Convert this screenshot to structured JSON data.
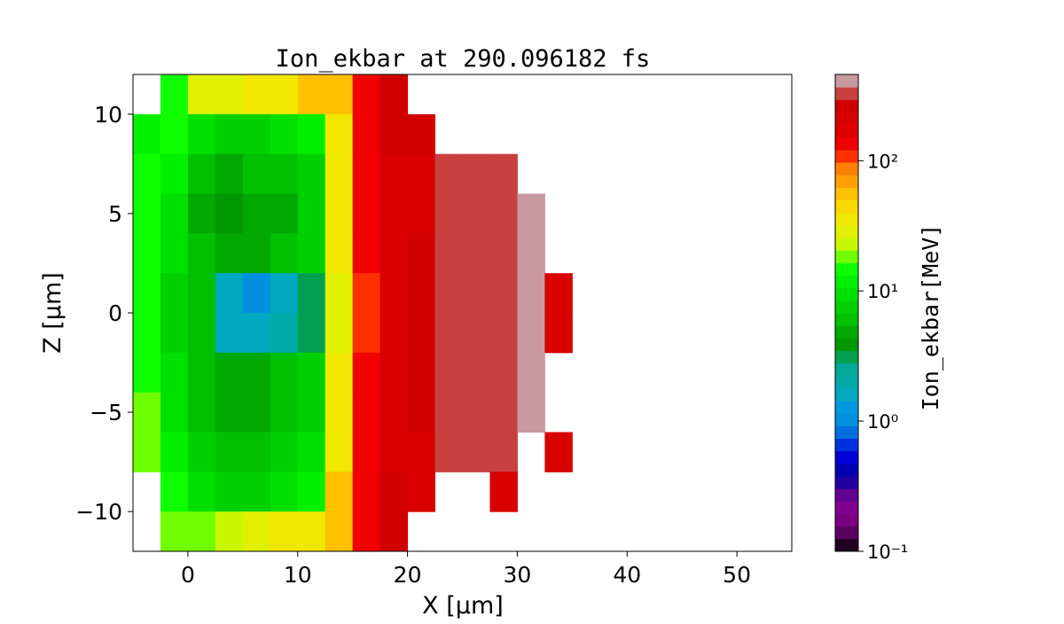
{
  "chart_data": {
    "type": "heatmap",
    "title": "Ion_ekbar at 290.096182 fs",
    "xlabel": "X  [μm]",
    "ylabel": "Z  [μm]",
    "colorbar_label": "Ion_ekbar[MeV]",
    "xlim": [
      -5,
      55
    ],
    "ylim": [
      -12,
      12
    ],
    "x_ticks": [
      0,
      10,
      20,
      30,
      40,
      50
    ],
    "x_tick_labels": [
      "0",
      "10",
      "20",
      "30",
      "40",
      "50"
    ],
    "y_ticks": [
      10,
      5,
      0,
      -5,
      -10
    ],
    "y_tick_labels": [
      "10",
      "5",
      "0",
      "−5",
      "−10"
    ],
    "colorbar_scale": "log",
    "colorbar_range": [
      0.1,
      460
    ],
    "colorbar_ticks": [
      100,
      10,
      1,
      0.1
    ],
    "colorbar_tick_labels": [
      "10²",
      "10¹",
      "10⁰",
      "10⁻¹"
    ],
    "colormap": [
      "#200020",
      "#580060",
      "#780080",
      "#800090",
      "#600090",
      "#2000a0",
      "#0000b0",
      "#0000d8",
      "#0030e0",
      "#0070e0",
      "#0090e0",
      "#0098e0",
      "#00a8c0",
      "#00a8a8",
      "#00a898",
      "#00a050",
      "#009800",
      "#00a800",
      "#00c000",
      "#00d000",
      "#00e000",
      "#00f000",
      "#10ff00",
      "#70ff00",
      "#c8f800",
      "#e0f000",
      "#f0e800",
      "#f8d800",
      "#ffc000",
      "#ffa000",
      "#ff8000",
      "#ff3000",
      "#f00000",
      "#e00000",
      "#d80000",
      "#d00000",
      "#c84040",
      "#c89aa0"
    ],
    "grid_x_centers": [
      -3.75,
      -1.25,
      1.25,
      3.75,
      6.25,
      8.75,
      11.25,
      13.75,
      16.25,
      18.75,
      21.25,
      23.75,
      26.25,
      28.75,
      31.25,
      33.75,
      36.25,
      38.75,
      41.25,
      43.75,
      46.25,
      48.75,
      51.25,
      53.75
    ],
    "grid_z_centers": [
      11,
      9,
      7,
      5,
      3,
      1,
      -1,
      -3,
      -5,
      -7,
      -9,
      -11
    ],
    "values_MeV": [
      [
        null,
        15,
        30,
        30,
        35,
        40,
        50,
        60,
        150,
        250,
        null,
        null,
        null,
        null,
        null,
        null,
        null,
        null,
        null,
        null,
        null,
        null,
        null,
        null
      ],
      [
        12,
        15,
        10,
        8,
        8,
        9,
        12,
        40,
        150,
        250,
        250,
        null,
        null,
        null,
        null,
        null,
        null,
        null,
        null,
        null,
        null,
        null,
        null,
        null
      ],
      [
        15,
        12,
        6,
        5,
        6,
        6,
        8,
        40,
        150,
        200,
        200,
        300,
        300,
        300,
        null,
        null,
        null,
        null,
        null,
        null,
        null,
        null,
        null,
        null
      ],
      [
        15,
        10,
        5,
        4,
        5,
        5,
        7,
        40,
        150,
        200,
        200,
        300,
        300,
        300,
        400,
        null,
        null,
        null,
        null,
        null,
        null,
        null,
        null,
        null
      ],
      [
        15,
        10,
        6,
        5,
        5,
        6,
        8,
        40,
        150,
        200,
        250,
        300,
        300,
        300,
        400,
        null,
        null,
        null,
        null,
        null,
        null,
        null,
        null,
        null
      ],
      [
        15,
        8,
        6,
        1.5,
        1,
        1.5,
        3,
        30,
        120,
        200,
        250,
        300,
        300,
        300,
        450,
        200,
        null,
        null,
        null,
        null,
        null,
        null,
        null,
        null
      ],
      [
        15,
        8,
        6,
        1.5,
        1.5,
        2,
        3,
        30,
        120,
        200,
        250,
        300,
        300,
        300,
        450,
        200,
        null,
        null,
        null,
        null,
        null,
        null,
        null,
        null
      ],
      [
        15,
        10,
        6,
        5,
        5,
        6,
        8,
        40,
        150,
        200,
        250,
        300,
        300,
        300,
        400,
        null,
        null,
        null,
        null,
        null,
        null,
        null,
        null,
        null
      ],
      [
        20,
        10,
        6,
        5,
        5,
        6,
        8,
        40,
        150,
        200,
        250,
        300,
        300,
        300,
        400,
        null,
        null,
        null,
        null,
        null,
        null,
        null,
        null,
        null
      ],
      [
        20,
        12,
        8,
        6,
        6,
        7,
        9,
        40,
        150,
        200,
        200,
        300,
        300,
        300,
        null,
        200,
        null,
        null,
        null,
        null,
        null,
        null,
        null,
        null
      ],
      [
        null,
        15,
        10,
        8,
        8,
        10,
        12,
        50,
        150,
        250,
        200,
        null,
        null,
        200,
        null,
        null,
        null,
        null,
        null,
        null,
        null,
        null,
        null,
        null
      ],
      [
        null,
        20,
        20,
        25,
        30,
        35,
        40,
        60,
        150,
        250,
        null,
        null,
        null,
        null,
        null,
        null,
        null,
        null,
        null,
        null,
        null,
        null,
        null,
        null
      ]
    ]
  }
}
